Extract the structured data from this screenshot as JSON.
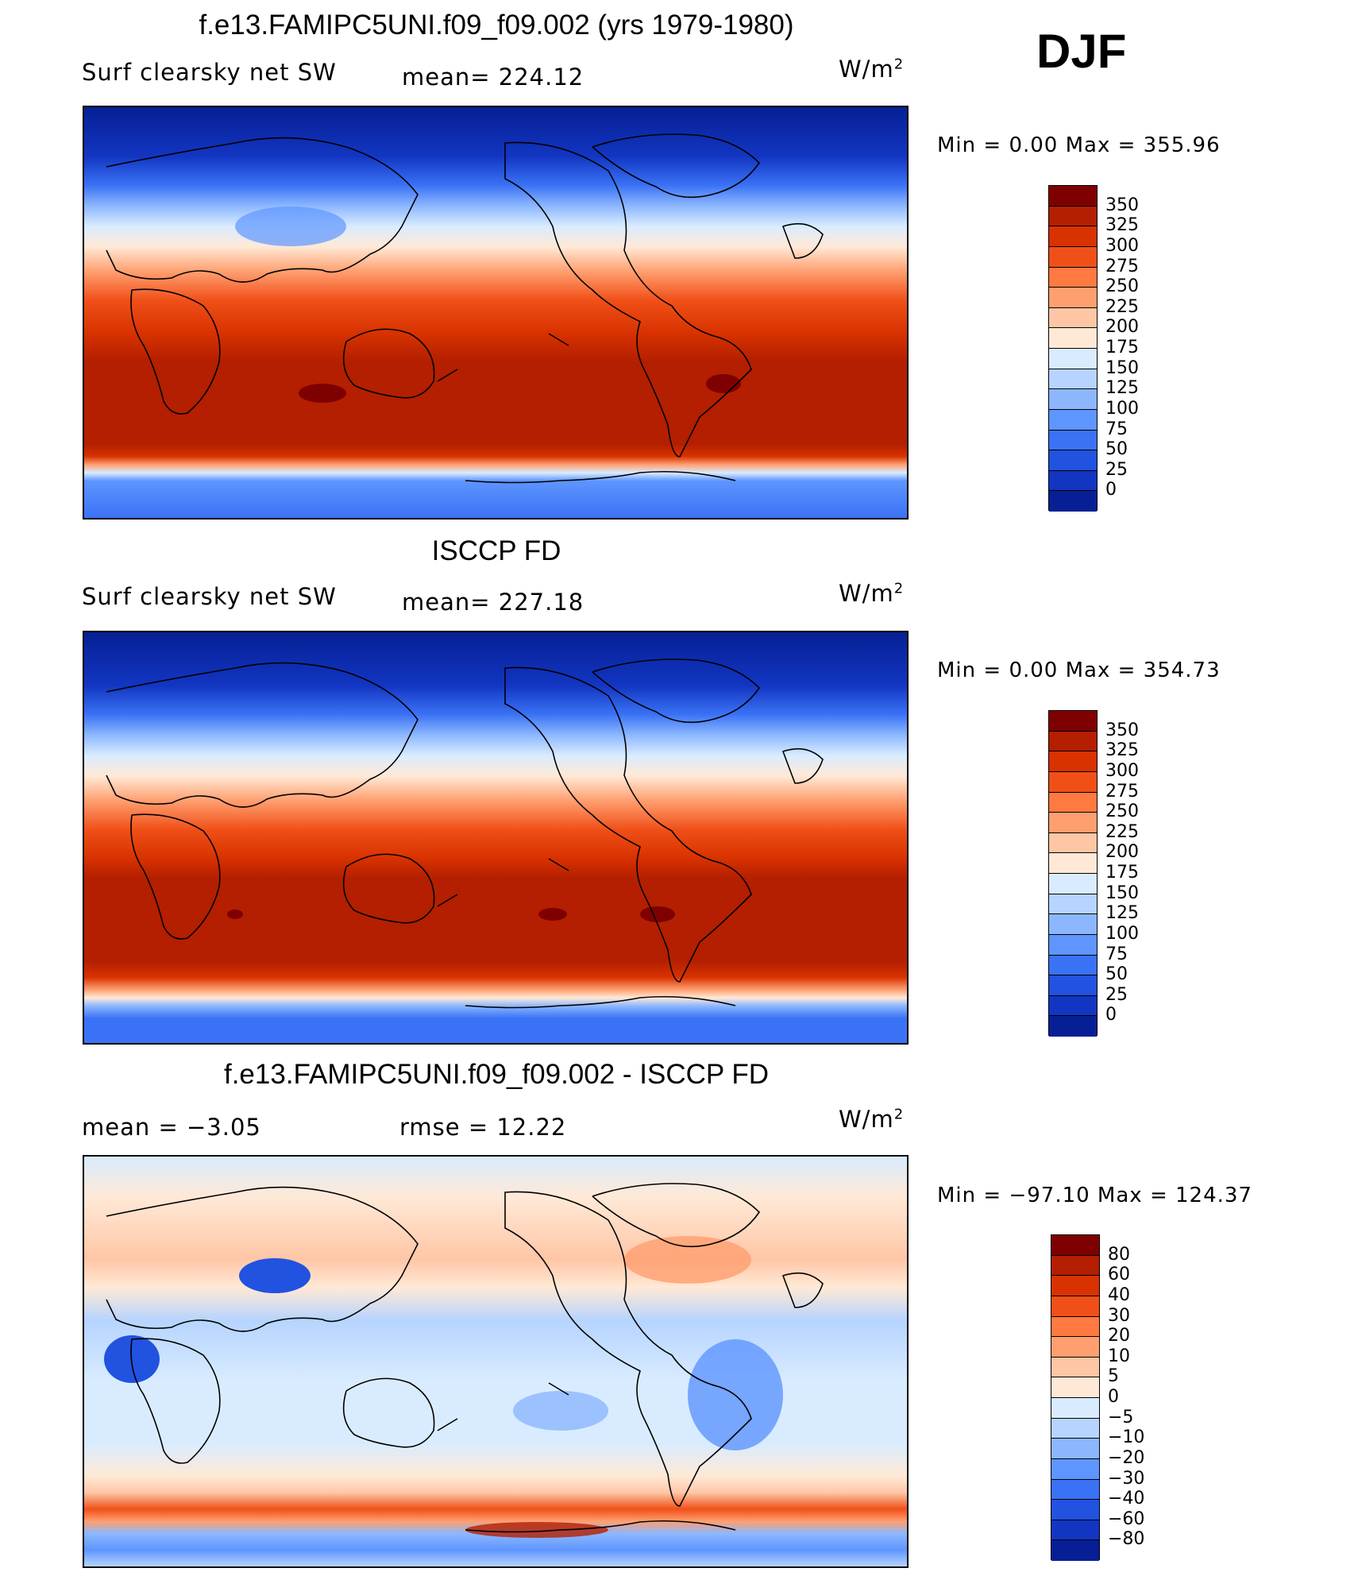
{
  "season": "DJF",
  "units_base": "W/m",
  "units_exp": "2",
  "panels": [
    {
      "title": "f.e13.FAMIPC5UNI.f09_f09.002 (yrs 1979-1980)",
      "left_label": "Surf clearsky net SW",
      "mid_label": "mean= 224.12",
      "minmax": "Min =     0.00  Max  =  355.96",
      "colorbar_labels": [
        "350",
        "325",
        "300",
        "275",
        "250",
        "225",
        "200",
        "175",
        "150",
        "125",
        "100",
        "75",
        "50",
        "25",
        "0"
      ]
    },
    {
      "title": "ISCCP FD",
      "left_label": "Surf clearsky net SW",
      "mid_label": "mean= 227.18",
      "minmax": "Min =     0.00  Max  =  354.73",
      "colorbar_labels": [
        "350",
        "325",
        "300",
        "275",
        "250",
        "225",
        "200",
        "175",
        "150",
        "125",
        "100",
        "75",
        "50",
        "25",
        "0"
      ]
    },
    {
      "title": "f.e13.FAMIPC5UNI.f09_f09.002 - ISCCP FD",
      "left_label": "mean  =    −3.05",
      "mid_label": "rmse  =     12.22",
      "minmax": "Min  =  −97.10  Max  =  124.37",
      "colorbar_labels": [
        "80",
        "60",
        "40",
        "30",
        "20",
        "10",
        "5",
        "0",
        "−5",
        "−10",
        "−20",
        "−30",
        "−40",
        "−60",
        "−80"
      ]
    }
  ],
  "colors": {
    "seq": [
      "#7f0000",
      "#b31f00",
      "#d83200",
      "#f05018",
      "#ff7a40",
      "#ff9f70",
      "#ffc6a6",
      "#ffe9d6",
      "#d9ecff",
      "#b6d4ff",
      "#8cb7ff",
      "#5e95ff",
      "#3a72f5",
      "#2252e0",
      "#1236c2",
      "#061f94"
    ],
    "div": [
      "#7f0000",
      "#b31f00",
      "#d83200",
      "#f05018",
      "#ff7a40",
      "#ff9f70",
      "#ffc6a6",
      "#ffe9d6",
      "#d9ecff",
      "#b6d4ff",
      "#8cb7ff",
      "#5e95ff",
      "#3a72f5",
      "#2252e0",
      "#1236c2",
      "#061f94"
    ]
  }
}
